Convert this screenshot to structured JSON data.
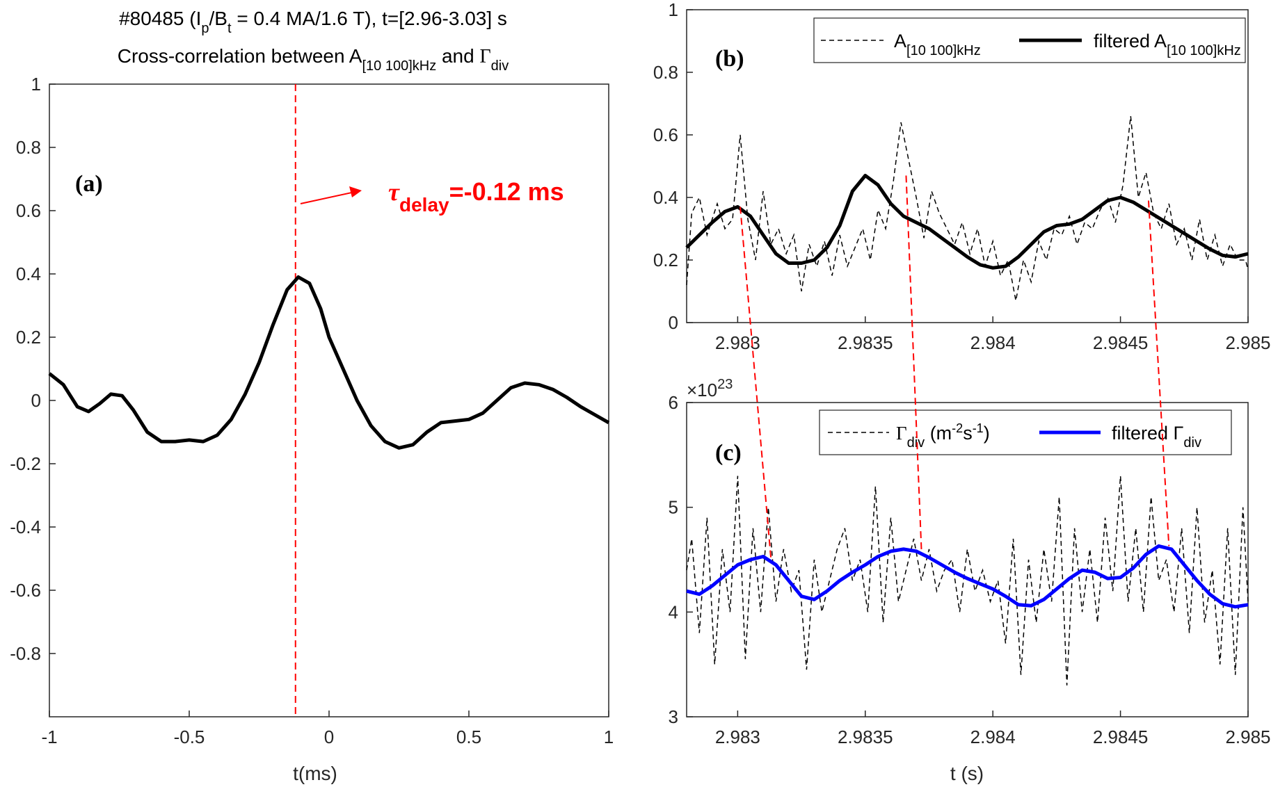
{
  "chart_data": [
    {
      "id": "a",
      "type": "line",
      "panel_label": "(a)",
      "title_line1": {
        "p1": "#80485 (I",
        "s1": "p",
        "p2": "/B",
        "s2": "t",
        "p3": " = 0.4 MA/1.6 T), t=[2.96-3.03] s"
      },
      "title_line2": {
        "p1": "Cross-correlation between A",
        "s1": "[10 100]kHz",
        "p2": " and ",
        "g": "Γ",
        "s2": "div"
      },
      "xlabel": "t(ms)",
      "xlim": [
        -1,
        1
      ],
      "ylim": [
        -1,
        1
      ],
      "xticks": [
        -1,
        -0.5,
        0,
        0.5,
        1
      ],
      "xtick_labels": [
        "-1",
        "-0.5",
        "0",
        "0.5",
        "1"
      ],
      "yticks": [
        -0.8,
        -0.6,
        -0.4,
        -0.2,
        0,
        0.2,
        0.4,
        0.6,
        0.8,
        1
      ],
      "ytick_labels": [
        "-0.8",
        "-0.6",
        "-0.4",
        "-0.2",
        "0",
        "0.2",
        "0.4",
        "0.6",
        "0.8",
        "1"
      ],
      "series": [
        {
          "name": "cross-correlation",
          "color": "#000000",
          "x": [
            -1,
            -0.95,
            -0.9,
            -0.86,
            -0.82,
            -0.78,
            -0.74,
            -0.7,
            -0.65,
            -0.6,
            -0.55,
            -0.5,
            -0.45,
            -0.4,
            -0.35,
            -0.3,
            -0.25,
            -0.2,
            -0.15,
            -0.11,
            -0.07,
            -0.03,
            0,
            0.05,
            0.1,
            0.15,
            0.2,
            0.25,
            0.3,
            0.35,
            0.4,
            0.45,
            0.5,
            0.55,
            0.6,
            0.65,
            0.7,
            0.75,
            0.8,
            0.85,
            0.9,
            0.95,
            1
          ],
          "y": [
            0.085,
            0.05,
            -0.02,
            -0.035,
            -0.01,
            0.02,
            0.015,
            -0.03,
            -0.1,
            -0.13,
            -0.13,
            -0.125,
            -0.13,
            -0.11,
            -0.06,
            0.02,
            0.12,
            0.24,
            0.35,
            0.39,
            0.37,
            0.29,
            0.2,
            0.1,
            0.0,
            -0.08,
            -0.13,
            -0.15,
            -0.14,
            -0.1,
            -0.07,
            -0.065,
            -0.06,
            -0.04,
            0.0,
            0.04,
            0.055,
            0.05,
            0.035,
            0.01,
            -0.02,
            -0.045,
            -0.07
          ]
        }
      ],
      "annotation": {
        "tau_symbol": "τ",
        "sub": "delay",
        "text": "=-0.12 ms",
        "delay_ms": -0.12,
        "color": "#ff0000"
      }
    },
    {
      "id": "b",
      "type": "line",
      "panel_label": "(b)",
      "xlim": [
        2.9828,
        2.985
      ],
      "ylim": [
        0,
        1
      ],
      "xticks": [
        2.983,
        2.9835,
        2.984,
        2.9845,
        2.985
      ],
      "xtick_labels": [
        "2.983",
        "2.9835",
        "2.984",
        "2.9845",
        "2.985"
      ],
      "yticks": [
        0,
        0.2,
        0.4,
        0.6,
        0.8,
        1
      ],
      "ytick_labels": [
        "0",
        "0.2",
        "0.4",
        "0.6",
        "0.8",
        "1"
      ],
      "legend": [
        {
          "text": "A",
          "sub": "[10 100]kHz",
          "style": "dashed"
        },
        {
          "text": "filtered A",
          "sub": "[10 100]kHz",
          "style": "solid"
        }
      ],
      "series": [
        {
          "name": "A[10 100]kHz",
          "color": "#000000",
          "dash": true,
          "x": [
            2.9828,
            2.98282,
            2.98285,
            2.98288,
            2.98292,
            2.98295,
            2.98298,
            2.98301,
            2.98304,
            2.98307,
            2.9831,
            2.98313,
            2.98316,
            2.98319,
            2.98322,
            2.98325,
            2.98328,
            2.98331,
            2.98334,
            2.98337,
            2.9834,
            2.98343,
            2.98346,
            2.98349,
            2.98352,
            2.98355,
            2.98358,
            2.98361,
            2.98364,
            2.98367,
            2.9837,
            2.98373,
            2.98376,
            2.98379,
            2.98382,
            2.98385,
            2.98388,
            2.98391,
            2.98394,
            2.98397,
            2.984,
            2.98403,
            2.98406,
            2.98409,
            2.98412,
            2.98415,
            2.98418,
            2.98421,
            2.98424,
            2.98427,
            2.9843,
            2.98433,
            2.98436,
            2.98439,
            2.98442,
            2.98445,
            2.98448,
            2.98451,
            2.98454,
            2.98457,
            2.9846,
            2.98463,
            2.98466,
            2.98469,
            2.98472,
            2.98475,
            2.98478,
            2.98481,
            2.98484,
            2.98487,
            2.9849,
            2.98493,
            2.98496,
            2.98499,
            2.985
          ],
          "y": [
            0.12,
            0.35,
            0.4,
            0.28,
            0.38,
            0.3,
            0.33,
            0.6,
            0.33,
            0.2,
            0.42,
            0.25,
            0.3,
            0.22,
            0.28,
            0.1,
            0.25,
            0.18,
            0.26,
            0.15,
            0.28,
            0.18,
            0.24,
            0.3,
            0.2,
            0.36,
            0.3,
            0.45,
            0.64,
            0.52,
            0.4,
            0.27,
            0.42,
            0.35,
            0.3,
            0.25,
            0.32,
            0.22,
            0.3,
            0.18,
            0.26,
            0.15,
            0.2,
            0.07,
            0.2,
            0.13,
            0.26,
            0.2,
            0.3,
            0.28,
            0.34,
            0.25,
            0.32,
            0.3,
            0.36,
            0.4,
            0.32,
            0.44,
            0.66,
            0.4,
            0.48,
            0.35,
            0.3,
            0.38,
            0.25,
            0.3,
            0.2,
            0.33,
            0.2,
            0.28,
            0.18,
            0.25,
            0.2,
            0.2,
            0.17
          ]
        },
        {
          "name": "filtered A[10 100]kHz",
          "color": "#000000",
          "dash": false,
          "x": [
            2.9828,
            2.98285,
            2.9829,
            2.98295,
            2.983,
            2.98305,
            2.9831,
            2.98315,
            2.9832,
            2.98325,
            2.9833,
            2.98335,
            2.9834,
            2.98345,
            2.9835,
            2.98355,
            2.9836,
            2.98365,
            2.9837,
            2.98375,
            2.9838,
            2.98385,
            2.9839,
            2.98395,
            2.984,
            2.98405,
            2.9841,
            2.98415,
            2.9842,
            2.98425,
            2.9843,
            2.98435,
            2.9844,
            2.98445,
            2.9845,
            2.98455,
            2.9846,
            2.98465,
            2.9847,
            2.98475,
            2.9848,
            2.98485,
            2.9849,
            2.98495,
            2.985
          ],
          "y": [
            0.24,
            0.28,
            0.32,
            0.355,
            0.37,
            0.34,
            0.28,
            0.22,
            0.19,
            0.19,
            0.2,
            0.24,
            0.31,
            0.42,
            0.47,
            0.44,
            0.38,
            0.34,
            0.32,
            0.3,
            0.27,
            0.24,
            0.21,
            0.185,
            0.175,
            0.18,
            0.21,
            0.25,
            0.29,
            0.31,
            0.315,
            0.33,
            0.36,
            0.39,
            0.4,
            0.385,
            0.36,
            0.335,
            0.31,
            0.285,
            0.26,
            0.235,
            0.215,
            0.21,
            0.22
          ]
        }
      ]
    },
    {
      "id": "c",
      "type": "line",
      "panel_label": "(c)",
      "xlabel": "t (s)",
      "xlim": [
        2.9828,
        2.985
      ],
      "ylim": [
        3,
        6
      ],
      "exponent": {
        "prefix": "×10",
        "power": "23"
      },
      "xticks": [
        2.983,
        2.9835,
        2.984,
        2.9845,
        2.985
      ],
      "xtick_labels": [
        "2.983",
        "2.9835",
        "2.984",
        "2.9845",
        "2.985"
      ],
      "yticks": [
        3,
        4,
        5,
        6
      ],
      "ytick_labels": [
        "3",
        "4",
        "5",
        "6"
      ],
      "legend": [
        {
          "text": "Γ",
          "sub": "div",
          "tail": " (m",
          "sup1": "-2",
          "mid": "s",
          "sup2": "-1",
          "end": ")",
          "style": "dashed"
        },
        {
          "text": "filtered Γ",
          "sub": "div",
          "style": "solid"
        }
      ],
      "series": [
        {
          "name": "Γdiv",
          "color": "#000000",
          "dash": true,
          "x": [
            2.9828,
            2.98282,
            2.98285,
            2.98288,
            2.98291,
            2.98294,
            2.98297,
            2.983,
            2.98303,
            2.98306,
            2.98309,
            2.98312,
            2.98315,
            2.98318,
            2.98321,
            2.98324,
            2.98327,
            2.9833,
            2.98333,
            2.98336,
            2.98339,
            2.98342,
            2.98345,
            2.98348,
            2.98351,
            2.98354,
            2.98357,
            2.9836,
            2.98363,
            2.98366,
            2.98369,
            2.98372,
            2.98375,
            2.98378,
            2.98381,
            2.98384,
            2.98387,
            2.9839,
            2.98393,
            2.98396,
            2.98399,
            2.98402,
            2.98405,
            2.98408,
            2.98411,
            2.98414,
            2.98417,
            2.9842,
            2.98423,
            2.98426,
            2.98429,
            2.98432,
            2.98435,
            2.98438,
            2.98441,
            2.98444,
            2.98447,
            2.9845,
            2.98453,
            2.98456,
            2.98459,
            2.98462,
            2.98465,
            2.98468,
            2.98471,
            2.98474,
            2.98477,
            2.9848,
            2.98483,
            2.98486,
            2.98489,
            2.98492,
            2.98495,
            2.98498,
            2.985
          ],
          "y": [
            4.4,
            4.7,
            3.8,
            4.9,
            3.5,
            4.6,
            4.0,
            5.3,
            3.55,
            4.8,
            4.0,
            5.0,
            4.1,
            4.6,
            4.2,
            4.4,
            3.45,
            4.5,
            4.0,
            4.3,
            4.6,
            4.8,
            4.3,
            4.5,
            4.0,
            5.2,
            3.9,
            4.9,
            4.1,
            4.4,
            4.7,
            4.3,
            4.6,
            4.2,
            4.4,
            4.5,
            4.0,
            4.6,
            4.2,
            4.4,
            4.1,
            4.3,
            3.7,
            4.7,
            3.4,
            4.5,
            3.9,
            4.6,
            4.1,
            5.1,
            3.3,
            4.8,
            4.0,
            4.6,
            3.9,
            4.9,
            4.2,
            5.3,
            4.1,
            4.8,
            4.0,
            5.1,
            4.3,
            4.5,
            4.0,
            4.8,
            3.8,
            5.0,
            3.9,
            4.4,
            3.5,
            4.8,
            3.4,
            5.0,
            4.1
          ]
        },
        {
          "name": "filtered Γdiv",
          "color": "#0000ff",
          "dash": false,
          "x": [
            2.9828,
            2.98285,
            2.9829,
            2.98295,
            2.983,
            2.98305,
            2.9831,
            2.98315,
            2.9832,
            2.98325,
            2.9833,
            2.98335,
            2.9834,
            2.98345,
            2.9835,
            2.98355,
            2.9836,
            2.98365,
            2.9837,
            2.98375,
            2.9838,
            2.98385,
            2.9839,
            2.98395,
            2.984,
            2.98405,
            2.9841,
            2.98415,
            2.9842,
            2.98425,
            2.9843,
            2.98435,
            2.9844,
            2.98445,
            2.9845,
            2.98455,
            2.9846,
            2.98465,
            2.9847,
            2.98475,
            2.9848,
            2.98485,
            2.9849,
            2.98495,
            2.985
          ],
          "y": [
            4.2,
            4.17,
            4.25,
            4.35,
            4.45,
            4.5,
            4.53,
            4.45,
            4.3,
            4.15,
            4.12,
            4.2,
            4.3,
            4.38,
            4.45,
            4.53,
            4.58,
            4.6,
            4.58,
            4.52,
            4.45,
            4.38,
            4.32,
            4.27,
            4.22,
            4.15,
            4.07,
            4.06,
            4.12,
            4.22,
            4.32,
            4.4,
            4.38,
            4.32,
            4.33,
            4.42,
            4.55,
            4.63,
            4.6,
            4.45,
            4.3,
            4.17,
            4.08,
            4.05,
            4.07
          ]
        }
      ]
    }
  ],
  "connectors": {
    "color": "#ff0000",
    "pairs": [
      {
        "b": [
          2.98301,
          0.37
        ],
        "c": [
          2.98313,
          4.52
        ]
      },
      {
        "b": [
          2.98366,
          0.47
        ],
        "c": [
          2.98372,
          4.6
        ]
      },
      {
        "b": [
          2.98461,
          0.39
        ],
        "c": [
          2.98469,
          4.63
        ]
      }
    ]
  }
}
